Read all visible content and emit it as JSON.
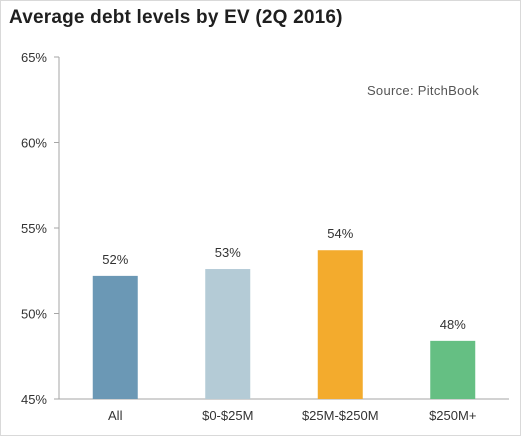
{
  "chart_data": {
    "type": "bar",
    "title": "Average debt levels by EV (2Q 2016)",
    "source": "Source: PitchBook",
    "categories": [
      "All",
      "$0-$25M",
      "$25M-$250M",
      "$250M+"
    ],
    "values": [
      52.2,
      52.6,
      53.7,
      48.4
    ],
    "value_labels": [
      "52%",
      "53%",
      "54%",
      "48%"
    ],
    "colors": [
      "#6b98b5",
      "#b4cbd6",
      "#f3ab2d",
      "#65bf83"
    ],
    "ylim": [
      45,
      65
    ],
    "yticks": [
      45,
      50,
      55,
      60,
      65
    ],
    "ytick_labels": [
      "45%",
      "50%",
      "55%",
      "60%",
      "65%"
    ],
    "xlabel": "",
    "ylabel": "",
    "grid": false,
    "legend": "none"
  }
}
